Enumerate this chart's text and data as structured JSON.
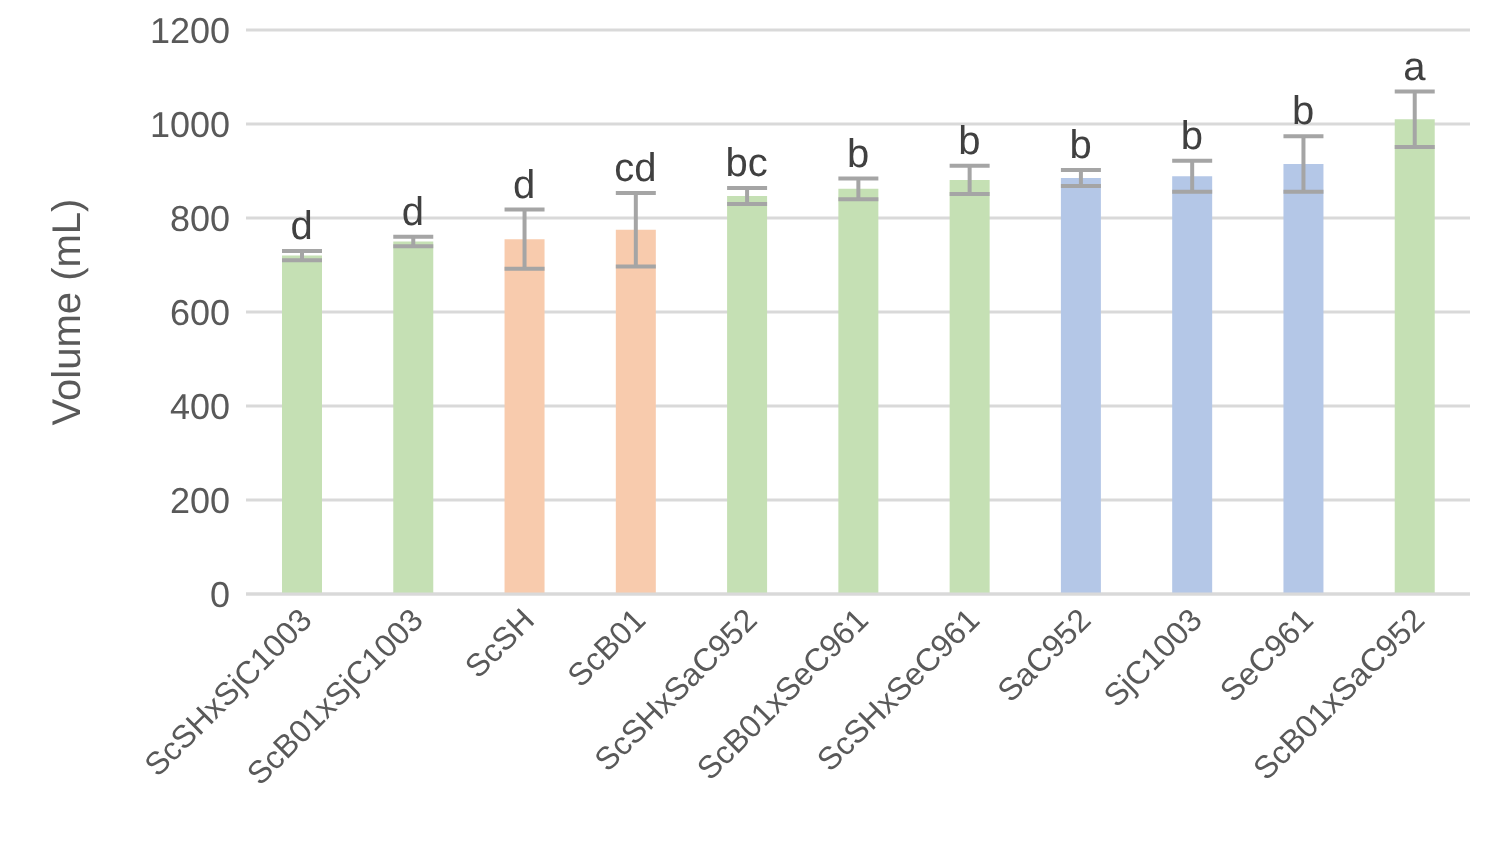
{
  "chart_data": {
    "type": "bar",
    "ylabel": "Volume (mL)",
    "categories": [
      "ScSHxSjC1003",
      "ScB01xSjC1003",
      "ScSH",
      "ScB01",
      "ScSHxSaC952",
      "ScB01xSeC961",
      "ScSHxSeC961",
      "SaC952",
      "SjC1003",
      "SeC961",
      "ScB01xSaC952"
    ],
    "values": [
      720,
      750,
      755,
      775,
      847,
      862,
      881,
      885,
      889,
      915,
      1010
    ],
    "colors": [
      "#c5e0b4",
      "#c5e0b4",
      "#f8cbad",
      "#f8cbad",
      "#c5e0b4",
      "#c5e0b4",
      "#c5e0b4",
      "#b4c7e7",
      "#b4c7e7",
      "#b4c7e7",
      "#c5e0b4"
    ],
    "errors": [
      10,
      10,
      63,
      78,
      17,
      22,
      30,
      17,
      33,
      59,
      59
    ],
    "ylim": [
      0,
      1200
    ],
    "yticks": [
      0,
      200,
      400,
      600,
      800,
      1000,
      1200
    ],
    "grid": "y",
    "annotations": [
      {
        "text": "d",
        "x": "ScSHxSjC1003",
        "y": 730
      },
      {
        "text": "d",
        "x": "ScB01xSjC1003",
        "y": 760
      },
      {
        "text": "d",
        "x": "ScSH",
        "y": 818
      },
      {
        "text": "cd",
        "x": "ScB01",
        "y": 853
      },
      {
        "text": "bc",
        "x": "ScSHxSaC952",
        "y": 864
      },
      {
        "text": "b",
        "x": "ScB01xSeC961",
        "y": 884
      },
      {
        "text": "b",
        "x": "ScSHxSeC961",
        "y": 911
      },
      {
        "text": "b",
        "x": "SaC952",
        "y": 902
      },
      {
        "text": "b",
        "x": "SjC1003",
        "y": 922
      },
      {
        "text": "b",
        "x": "SeC961",
        "y": 974
      },
      {
        "text": "a",
        "x": "ScB01xSaC952",
        "y": 1069
      }
    ]
  }
}
